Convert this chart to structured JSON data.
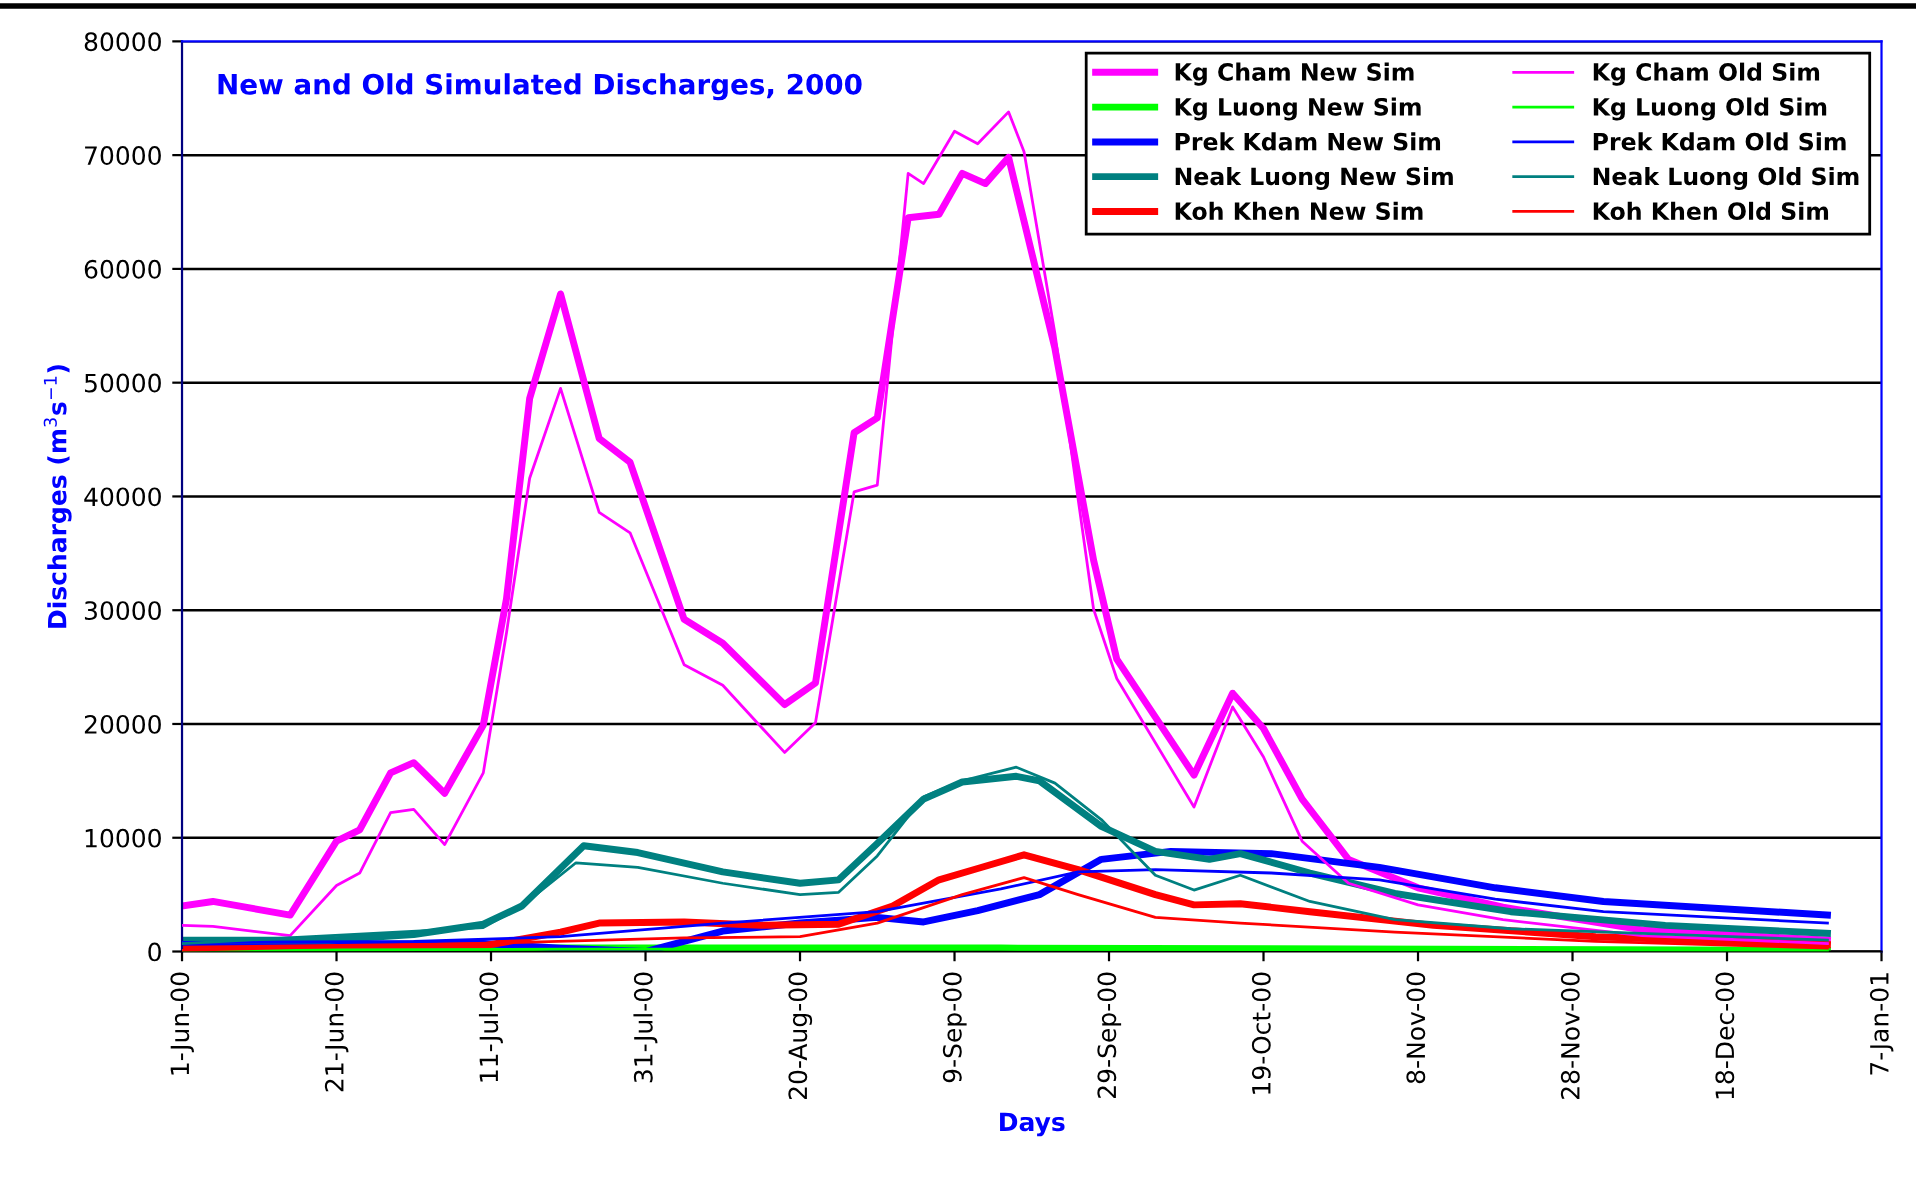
{
  "chart_data": {
    "type": "line",
    "title": "New and Old Simulated Discharges, 2000",
    "xlabel": "Days",
    "ylabel": "Discharges (m$^{3}$s$^{−1}$)",
    "xlim": [
      "2000-06-01",
      "2001-01-07"
    ],
    "xticks": [
      {
        "value": "2000-06-01",
        "label": "1-Jun-00"
      },
      {
        "value": "2000-06-21",
        "label": "21-Jun-00"
      },
      {
        "value": "2000-07-11",
        "label": "11-Jul-00"
      },
      {
        "value": "2000-07-31",
        "label": "31-Jul-00"
      },
      {
        "value": "2000-08-20",
        "label": "20-Aug-00"
      },
      {
        "value": "2000-09-09",
        "label": "9-Sep-00"
      },
      {
        "value": "2000-09-29",
        "label": "29-Sep-00"
      },
      {
        "value": "2000-10-19",
        "label": "19-Oct-00"
      },
      {
        "value": "2000-11-08",
        "label": "8-Nov-00"
      },
      {
        "value": "2000-11-28",
        "label": "28-Nov-00"
      },
      {
        "value": "2000-12-18",
        "label": "18-Dec-00"
      },
      {
        "value": "2001-01-07",
        "label": "7-Jan-01"
      }
    ],
    "ylim": [
      0,
      80000
    ],
    "yticks": [
      0,
      10000,
      20000,
      30000,
      40000,
      50000,
      60000,
      70000,
      80000
    ],
    "grid": "y",
    "legend": "top right",
    "marker": "none",
    "series": [
      {
        "name": "Kg Cham New Sim",
        "color": "#ff00ff",
        "x": [
          "2000-06-01",
          "2000-06-05",
          "2000-06-15",
          "2000-06-21",
          "2000-06-24",
          "2000-06-28",
          "2000-07-01",
          "2000-07-05",
          "2000-07-10",
          "2000-07-13",
          "2000-07-16",
          "2000-07-20",
          "2000-07-25",
          "2000-07-29",
          "2000-08-05",
          "2000-08-10",
          "2000-08-18",
          "2000-08-22",
          "2000-08-27",
          "2000-08-30",
          "2000-09-03",
          "2000-09-07",
          "2000-09-10",
          "2000-09-13",
          "2000-09-16",
          "2000-09-22",
          "2000-09-27",
          "2000-09-30",
          "2000-10-10",
          "2000-10-15",
          "2000-10-19",
          "2000-10-24",
          "2000-10-30",
          "2000-11-08",
          "2000-11-19",
          "2000-12-07",
          "2000-12-31"
        ],
        "values": [
          4000,
          4400,
          3200,
          9700,
          10700,
          15700,
          16600,
          13900,
          19900,
          31000,
          48600,
          57800,
          45100,
          43000,
          29200,
          27100,
          21700,
          23600,
          45600,
          46900,
          64500,
          64800,
          68400,
          67500,
          69800,
          53000,
          34400,
          25700,
          15500,
          22700,
          19600,
          13400,
          8100,
          5600,
          3900,
          1900,
          1000
        ]
      },
      {
        "name": "Kg Cham Old Sim",
        "color": "#ff00ff",
        "x": [
          "2000-06-01",
          "2000-06-05",
          "2000-06-15",
          "2000-06-21",
          "2000-06-24",
          "2000-06-28",
          "2000-07-01",
          "2000-07-05",
          "2000-07-10",
          "2000-07-13",
          "2000-07-16",
          "2000-07-20",
          "2000-07-25",
          "2000-07-29",
          "2000-08-05",
          "2000-08-10",
          "2000-08-18",
          "2000-08-22",
          "2000-08-27",
          "2000-08-30",
          "2000-09-03",
          "2000-09-05",
          "2000-09-09",
          "2000-09-12",
          "2000-09-16",
          "2000-09-18",
          "2000-09-22",
          "2000-09-27",
          "2000-09-30",
          "2000-10-10",
          "2000-10-15",
          "2000-10-19",
          "2000-10-24",
          "2000-10-30",
          "2000-11-08",
          "2000-11-19",
          "2000-12-07",
          "2000-12-31"
        ],
        "values": [
          2300,
          2200,
          1400,
          5800,
          6900,
          12200,
          12500,
          9400,
          15700,
          28000,
          41600,
          49500,
          38600,
          36800,
          25200,
          23400,
          17500,
          20100,
          40400,
          41000,
          68400,
          67500,
          72100,
          71000,
          73800,
          70300,
          54300,
          30100,
          24000,
          12700,
          21500,
          17100,
          9700,
          6000,
          4100,
          2800,
          1400,
          700
        ]
      },
      {
        "name": "Kg Luong New Sim",
        "color": "#00ff00",
        "x": [
          "2000-06-01",
          "2000-07-20",
          "2000-09-15",
          "2000-12-31"
        ],
        "values": [
          200,
          300,
          300,
          100
        ]
      },
      {
        "name": "Kg Luong Old Sim",
        "color": "#00ff00",
        "x": [
          "2000-06-01",
          "2000-07-20",
          "2000-09-15",
          "2000-12-31"
        ],
        "values": [
          100,
          200,
          200,
          100
        ]
      },
      {
        "name": "Prek Kdam New Sim",
        "color": "#0000ff",
        "x": [
          "2000-06-01",
          "2000-07-10",
          "2000-07-20",
          "2000-07-31",
          "2000-08-10",
          "2000-08-20",
          "2000-08-30",
          "2000-09-05",
          "2000-09-12",
          "2000-09-20",
          "2000-09-28",
          "2000-10-07",
          "2000-10-20",
          "2000-11-03",
          "2000-11-18",
          "2000-12-02",
          "2000-12-31"
        ],
        "values": [
          500,
          700,
          300,
          0,
          1800,
          2500,
          3000,
          2600,
          3600,
          5000,
          8100,
          8800,
          8600,
          7400,
          5600,
          4400,
          3200
        ]
      },
      {
        "name": "Prek Kdam Old Sim",
        "color": "#0000ff",
        "x": [
          "2000-06-01",
          "2000-07-01",
          "2000-07-20",
          "2000-08-10",
          "2000-08-30",
          "2000-09-15",
          "2000-09-25",
          "2000-10-05",
          "2000-10-20",
          "2000-11-03",
          "2000-11-18",
          "2000-12-02",
          "2000-12-31"
        ],
        "values": [
          800,
          900,
          1300,
          2500,
          3500,
          5500,
          7000,
          7200,
          6900,
          6300,
          4600,
          3500,
          2500
        ]
      },
      {
        "name": "Neak Luong New Sim",
        "color": "#008080",
        "x": [
          "2000-06-01",
          "2000-06-20",
          "2000-07-01",
          "2000-07-10",
          "2000-07-15",
          "2000-07-23",
          "2000-07-30",
          "2000-08-10",
          "2000-08-20",
          "2000-08-25",
          "2000-08-30",
          "2000-09-05",
          "2000-09-10",
          "2000-09-17",
          "2000-09-20",
          "2000-09-28",
          "2000-10-05",
          "2000-10-12",
          "2000-10-16",
          "2000-10-25",
          "2000-11-05",
          "2000-11-20",
          "2000-12-10",
          "2000-12-31"
        ],
        "values": [
          1000,
          1000,
          1500,
          2400,
          4000,
          9300,
          8700,
          7000,
          6000,
          6300,
          9500,
          13400,
          14900,
          15400,
          15000,
          11000,
          8800,
          8100,
          8600,
          6900,
          5100,
          3500,
          2300,
          1600
        ]
      },
      {
        "name": "Neak Luong Old Sim",
        "color": "#008080",
        "x": [
          "2000-06-01",
          "2000-07-10",
          "2000-07-15",
          "2000-07-22",
          "2000-07-30",
          "2000-08-10",
          "2000-08-20",
          "2000-08-25",
          "2000-08-30",
          "2000-09-05",
          "2000-09-10",
          "2000-09-17",
          "2000-09-22",
          "2000-09-28",
          "2000-10-05",
          "2000-10-10",
          "2000-10-16",
          "2000-10-25",
          "2000-11-05",
          "2000-11-20",
          "2000-12-31"
        ],
        "values": [
          700,
          2100,
          4000,
          7800,
          7400,
          6000,
          5000,
          5200,
          8400,
          13600,
          15000,
          16200,
          14800,
          11600,
          6700,
          5400,
          6700,
          4400,
          2800,
          2000,
          1000
        ]
      },
      {
        "name": "Koh Khen New Sim",
        "color": "#ff0000",
        "x": [
          "2000-06-01",
          "2000-07-10",
          "2000-07-20",
          "2000-07-25",
          "2000-08-05",
          "2000-08-15",
          "2000-08-25",
          "2000-09-01",
          "2000-09-07",
          "2000-09-12",
          "2000-09-18",
          "2000-09-25",
          "2000-10-05",
          "2000-10-10",
          "2000-10-16",
          "2000-10-25",
          "2000-11-10",
          "2000-12-01",
          "2000-12-31"
        ],
        "values": [
          200,
          500,
          1700,
          2500,
          2600,
          2300,
          2400,
          4000,
          6300,
          7300,
          8500,
          7200,
          5000,
          4100,
          4200,
          3500,
          2300,
          1300,
          600
        ]
      },
      {
        "name": "Koh Khen Old Sim",
        "color": "#ff0000",
        "x": [
          "2000-06-01",
          "2000-07-15",
          "2000-08-05",
          "2000-08-20",
          "2000-08-30",
          "2000-09-10",
          "2000-09-18",
          "2000-09-25",
          "2000-10-05",
          "2000-10-16",
          "2000-11-05",
          "2000-12-01",
          "2000-12-31"
        ],
        "values": [
          100,
          800,
          1200,
          1300,
          2500,
          5000,
          6500,
          5000,
          3000,
          2500,
          1700,
          900,
          300
        ]
      }
    ]
  }
}
